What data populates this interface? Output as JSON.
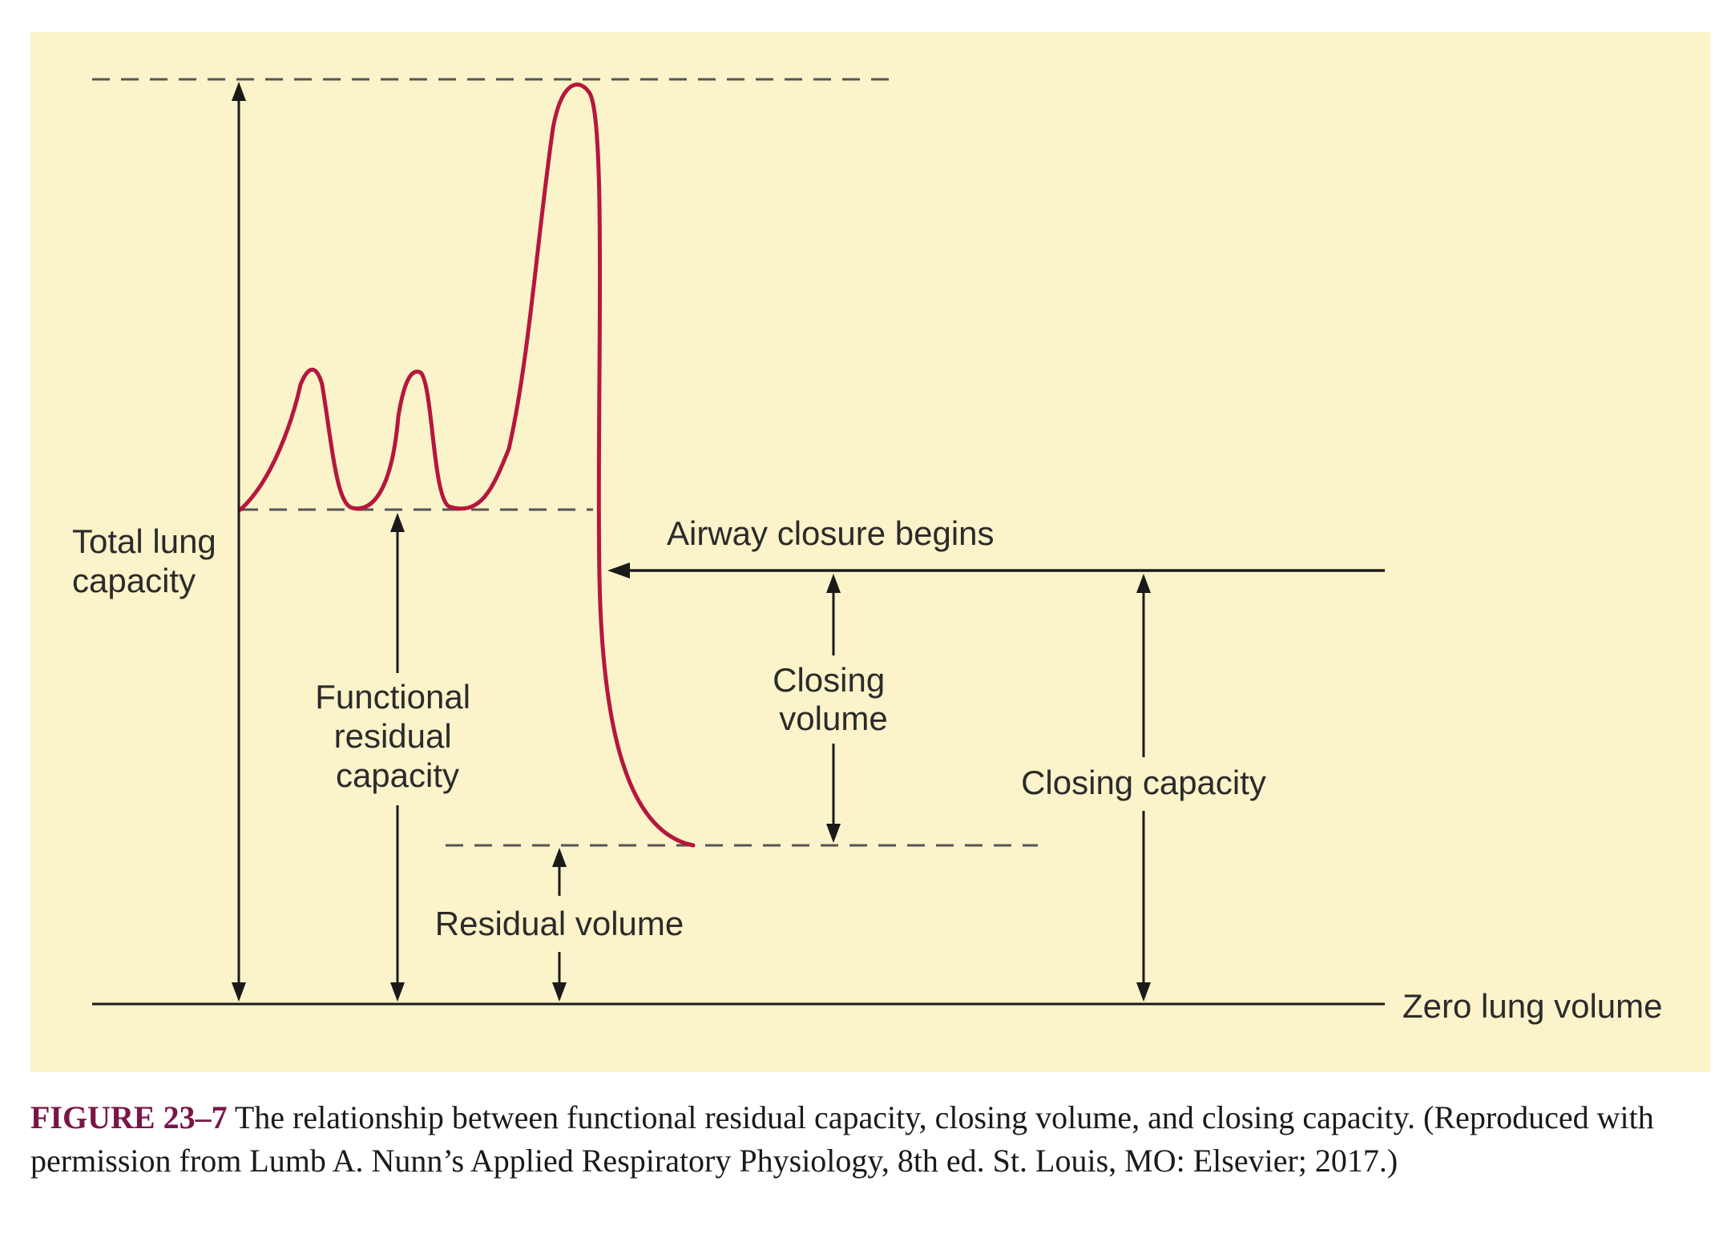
{
  "diagram": {
    "labels": {
      "total_lung_capacity": [
        "Total lung",
        "capacity"
      ],
      "functional_residual_capacity": [
        "Functional",
        "residual",
        "capacity"
      ],
      "airway_closure_begins": "Airway closure begins",
      "closing_volume": [
        "Closing",
        "volume"
      ],
      "closing_capacity": "Closing capacity",
      "residual_volume": "Residual volume",
      "zero_lung_volume": "Zero lung volume"
    },
    "colors": {
      "background": "#fbf3c9",
      "curve": "#b5173d",
      "lines": "#1a1a1a",
      "dashed": "#555555"
    }
  },
  "caption": {
    "figure_id": "FIGURE 23–7",
    "text": " The relationship between functional residual capacity, closing volume, and closing capacity. (Reproduced with permission from Lumb A. Nunn’s Applied Respiratory Physiology, 8th ed. St. Louis, MO: Elsevier; 2017.)"
  }
}
